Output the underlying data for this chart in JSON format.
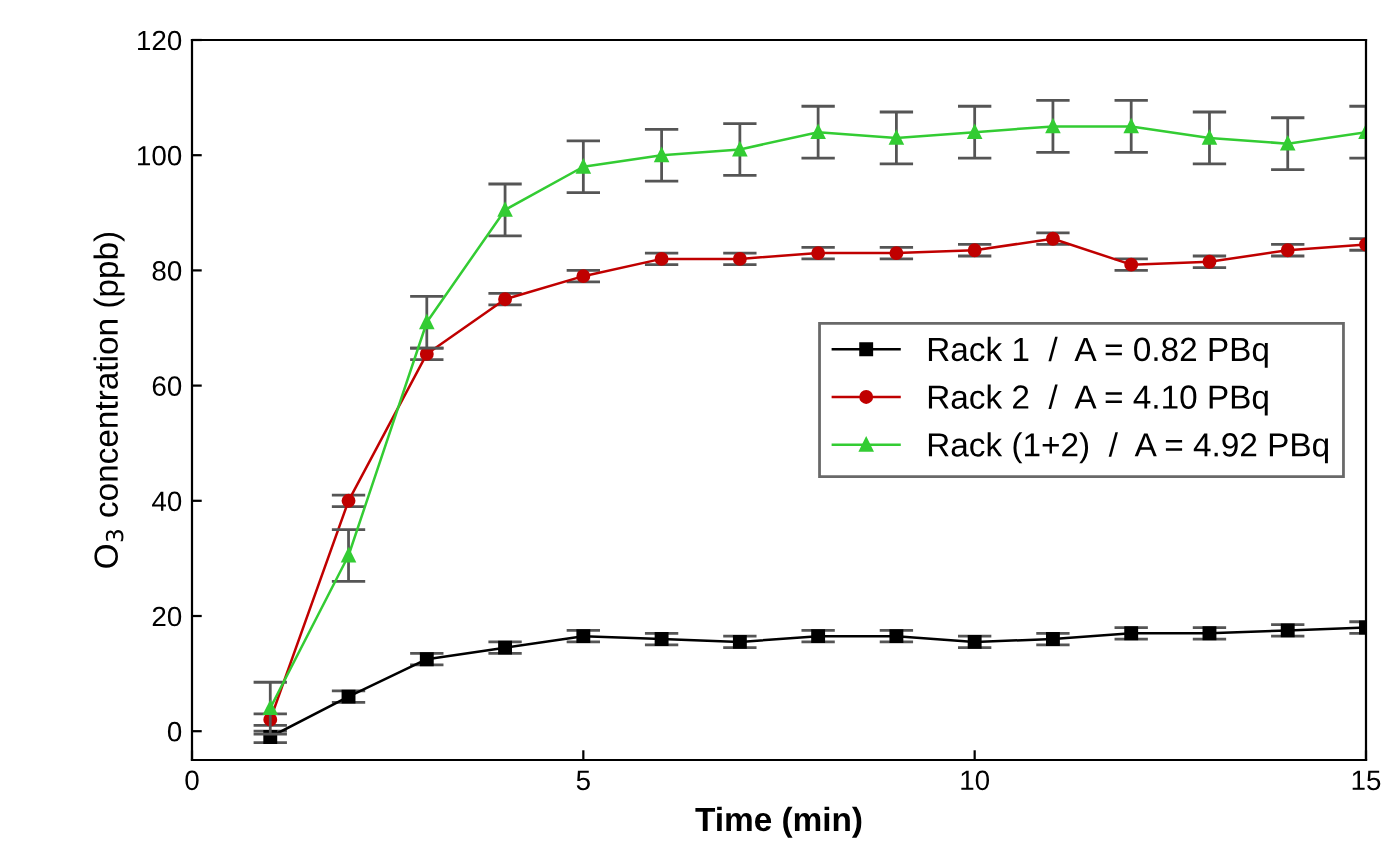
{
  "chart_data": {
    "type": "line",
    "xlabel": "Time (min)",
    "ylabel": "O$_{3}$ concentration (ppb)",
    "x": [
      1,
      2,
      3,
      4,
      5,
      6,
      7,
      8,
      9,
      10,
      11,
      12,
      13,
      14,
      15
    ],
    "series": [
      {
        "name": "Rack 1  /  A = 0.82 PBq",
        "color": "#000000",
        "marker": "square",
        "values": [
          -1,
          6,
          12.5,
          14.5,
          16.5,
          16,
          15.5,
          16.5,
          16.5,
          15.5,
          16,
          17,
          17,
          17.5,
          18
        ],
        "errors": [
          1,
          1,
          1,
          1,
          1,
          1,
          1,
          1,
          1,
          1,
          1,
          1,
          1,
          1,
          1
        ]
      },
      {
        "name": "Rack 2  /  A = 4.10 PBq",
        "color": "#c00000",
        "marker": "circle",
        "values": [
          2,
          40,
          65.5,
          75,
          79,
          82,
          82,
          83,
          83,
          83.5,
          85.5,
          81,
          81.5,
          83.5,
          84.5
        ],
        "errors": [
          1,
          1,
          1,
          1,
          1,
          1,
          1,
          1,
          1,
          1,
          1,
          1,
          1,
          1,
          1
        ]
      },
      {
        "name": "Rack (1+2)  /  A = 4.92 PBq",
        "color": "#33cc33",
        "marker": "triangle",
        "values": [
          4,
          30.5,
          71,
          90.5,
          98,
          100,
          101,
          104,
          103,
          104,
          105,
          105,
          103,
          102,
          104
        ],
        "errors": [
          4.5,
          4.5,
          4.5,
          4.5,
          4.5,
          4.5,
          4.5,
          4.5,
          4.5,
          4.5,
          4.5,
          4.5,
          4.5,
          4.5,
          4.5
        ]
      }
    ],
    "xlim": [
      0,
      15
    ],
    "xticks": [
      0,
      5,
      10,
      15
    ],
    "ylim": [
      -5,
      120
    ],
    "yticks": [
      0,
      20,
      40,
      60,
      80,
      100,
      120
    ],
    "grid": false,
    "legend": "center right"
  }
}
